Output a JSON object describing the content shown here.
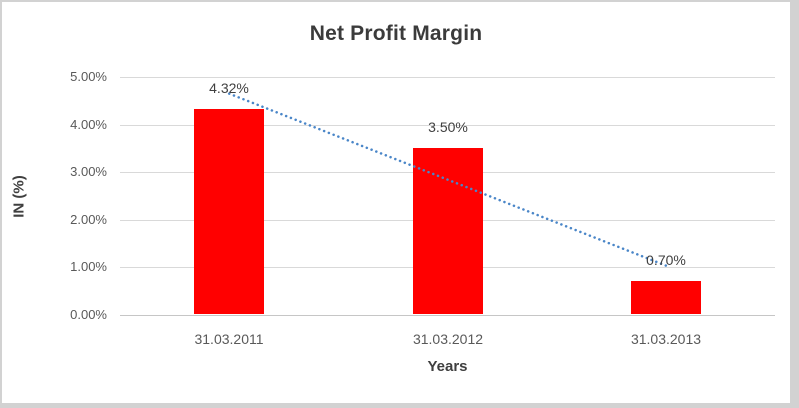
{
  "chart_data": {
    "type": "bar",
    "title": "Net Profit Margin",
    "xlabel": "Years",
    "ylabel": "IN (%)",
    "categories": [
      "31.03.2011",
      "31.03.2012",
      "31.03.2013"
    ],
    "values": [
      4.32,
      3.5,
      0.7
    ],
    "data_labels": [
      "4.32%",
      "3.50%",
      "0.70%"
    ],
    "ylim": [
      0,
      5
    ],
    "ytick_step": 1,
    "ytick_labels": [
      "0.00%",
      "1.00%",
      "2.00%",
      "3.00%",
      "4.00%",
      "5.00%"
    ],
    "grid": true,
    "legend": false,
    "bar_color": "#ff0000",
    "trendline": {
      "type": "linear",
      "style": "dotted",
      "color": "#4a86c8"
    }
  }
}
